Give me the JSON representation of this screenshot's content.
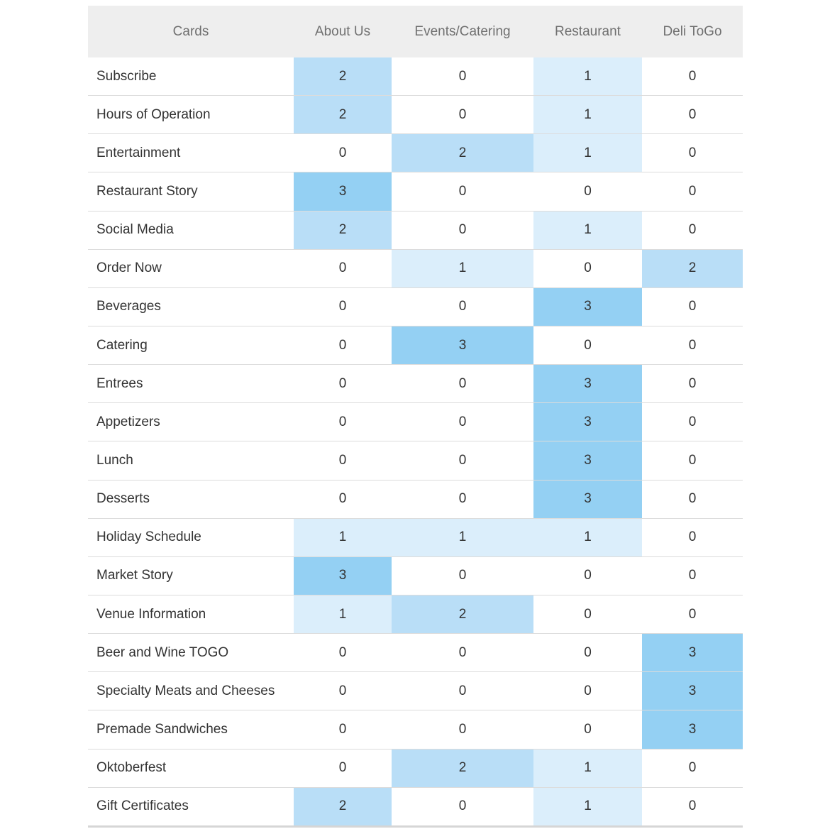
{
  "chart_data": {
    "type": "heatmap",
    "columns": [
      "Cards",
      "About Us",
      "Events/Catering",
      "Restaurant",
      "Deli ToGo"
    ],
    "rows": [
      {
        "label": "Subscribe",
        "values": [
          2,
          0,
          1,
          0
        ]
      },
      {
        "label": "Hours of Operation",
        "values": [
          2,
          0,
          1,
          0
        ]
      },
      {
        "label": "Entertainment",
        "values": [
          0,
          2,
          1,
          0
        ]
      },
      {
        "label": "Restaurant Story",
        "values": [
          3,
          0,
          0,
          0
        ]
      },
      {
        "label": "Social Media",
        "values": [
          2,
          0,
          1,
          0
        ]
      },
      {
        "label": "Order Now",
        "values": [
          0,
          1,
          0,
          2
        ]
      },
      {
        "label": "Beverages",
        "values": [
          0,
          0,
          3,
          0
        ]
      },
      {
        "label": "Catering",
        "values": [
          0,
          3,
          0,
          0
        ]
      },
      {
        "label": "Entrees",
        "values": [
          0,
          0,
          3,
          0
        ]
      },
      {
        "label": "Appetizers",
        "values": [
          0,
          0,
          3,
          0
        ]
      },
      {
        "label": "Lunch",
        "values": [
          0,
          0,
          3,
          0
        ]
      },
      {
        "label": "Desserts",
        "values": [
          0,
          0,
          3,
          0
        ]
      },
      {
        "label": "Holiday Schedule",
        "values": [
          1,
          1,
          1,
          0
        ]
      },
      {
        "label": "Market Story",
        "values": [
          3,
          0,
          0,
          0
        ]
      },
      {
        "label": "Venue Information",
        "values": [
          1,
          2,
          0,
          0
        ]
      },
      {
        "label": "Beer and Wine TOGO",
        "values": [
          0,
          0,
          0,
          3
        ]
      },
      {
        "label": "Specialty Meats and Cheeses",
        "values": [
          0,
          0,
          0,
          3
        ]
      },
      {
        "label": "Premade Sandwiches",
        "values": [
          0,
          0,
          0,
          3
        ]
      },
      {
        "label": "Oktoberfest",
        "values": [
          0,
          2,
          1,
          0
        ]
      },
      {
        "label": "Gift Certificates",
        "values": [
          2,
          0,
          1,
          0
        ]
      }
    ],
    "value_range": [
      0,
      3
    ],
    "colors": {
      "0": "#ffffff",
      "1": "#dbeefb",
      "2": "#b9def7",
      "3": "#94d0f3"
    }
  }
}
